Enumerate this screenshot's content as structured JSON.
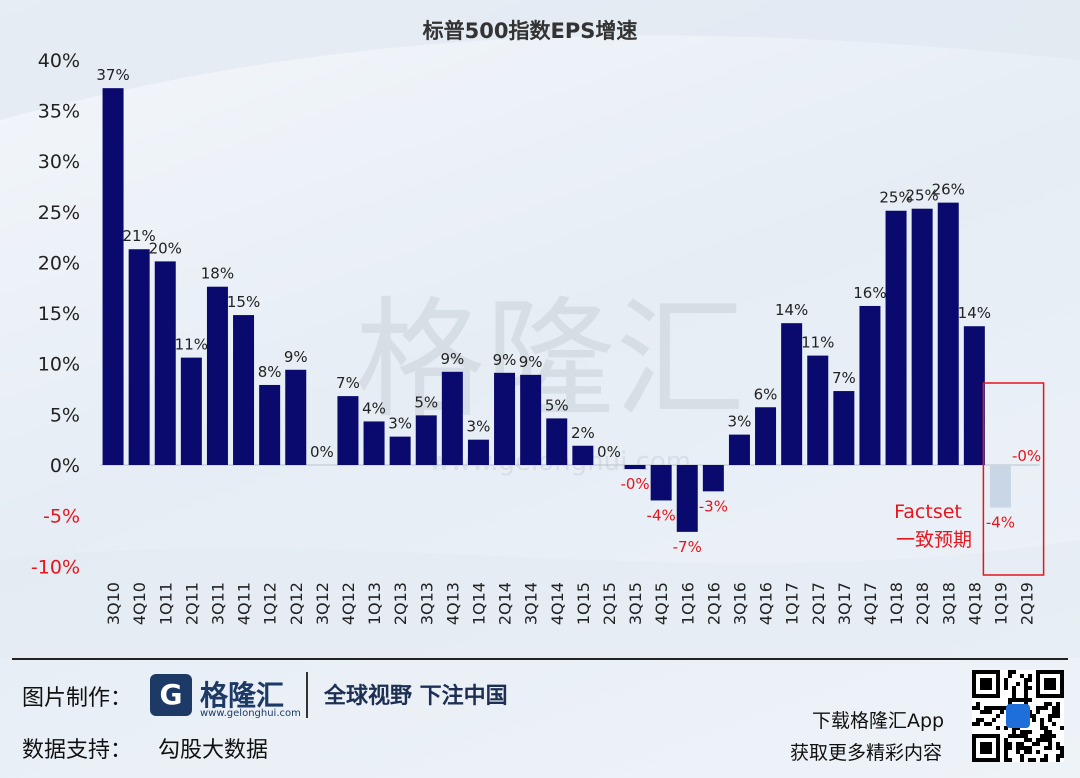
{
  "chart_data": {
    "type": "bar",
    "title": "标普500指数EPS增速",
    "categories": [
      "3Q10",
      "4Q10",
      "1Q11",
      "2Q11",
      "3Q11",
      "4Q11",
      "1Q12",
      "2Q12",
      "3Q12",
      "4Q12",
      "1Q13",
      "2Q13",
      "3Q13",
      "4Q13",
      "1Q14",
      "2Q14",
      "3Q14",
      "4Q14",
      "1Q15",
      "2Q15",
      "3Q15",
      "4Q15",
      "1Q16",
      "2Q16",
      "3Q16",
      "4Q16",
      "1Q17",
      "2Q17",
      "3Q17",
      "4Q17",
      "1Q18",
      "2Q18",
      "3Q18",
      "4Q18",
      "1Q19",
      "2Q19"
    ],
    "values": [
      37.2,
      21.3,
      20.1,
      10.6,
      17.6,
      14.8,
      7.9,
      9.4,
      0.0,
      6.8,
      4.3,
      2.8,
      4.9,
      9.2,
      2.5,
      9.1,
      8.9,
      4.6,
      1.9,
      0.0,
      -0.4,
      -3.5,
      -6.6,
      -2.6,
      3.0,
      5.7,
      14.0,
      10.8,
      7.3,
      15.7,
      25.1,
      25.3,
      25.9,
      13.7,
      -4.2,
      -0.1
    ],
    "labels": [
      "37%",
      "21%",
      "20%",
      "11%",
      "18%",
      "15%",
      "8%",
      "9%",
      "0%",
      "7%",
      "4%",
      "3%",
      "5%",
      "9%",
      "3%",
      "9%",
      "9%",
      "5%",
      "2%",
      "0%",
      "-0%",
      "-4%",
      "-7%",
      "-3%",
      "3%",
      "6%",
      "14%",
      "11%",
      "7%",
      "16%",
      "25%",
      "25%",
      "26%",
      "14%",
      "-4%",
      "-0%"
    ],
    "estimate_indices": [
      34,
      35
    ],
    "ylim": [
      -10,
      40
    ],
    "yticks": [
      "-10%",
      "-5%",
      "0%",
      "5%",
      "10%",
      "15%",
      "20%",
      "25%",
      "30%",
      "35%",
      "40%"
    ],
    "annotation": [
      "Factset",
      "一致预期"
    ],
    "colors": {
      "bar": "#0a0a6e",
      "estimate_bar": "#c9d6e6",
      "negative_label": "#e8141c",
      "positive_label": "#222222",
      "highlight_box": "#e8141c"
    }
  },
  "watermark": "格隆汇",
  "watermark_url": "www.gelonghui.com",
  "footer": {
    "made_by_label": "图片制作：",
    "logo_letter": "G",
    "brand_name": "格隆汇",
    "brand_url": "www.gelonghui.com",
    "slogan": "全球视野 下注中国",
    "data_support_label": "数据支持：",
    "data_source": "勾股大数据",
    "app_line1": "下载格隆汇App",
    "app_line2": "获取更多精彩内容"
  }
}
